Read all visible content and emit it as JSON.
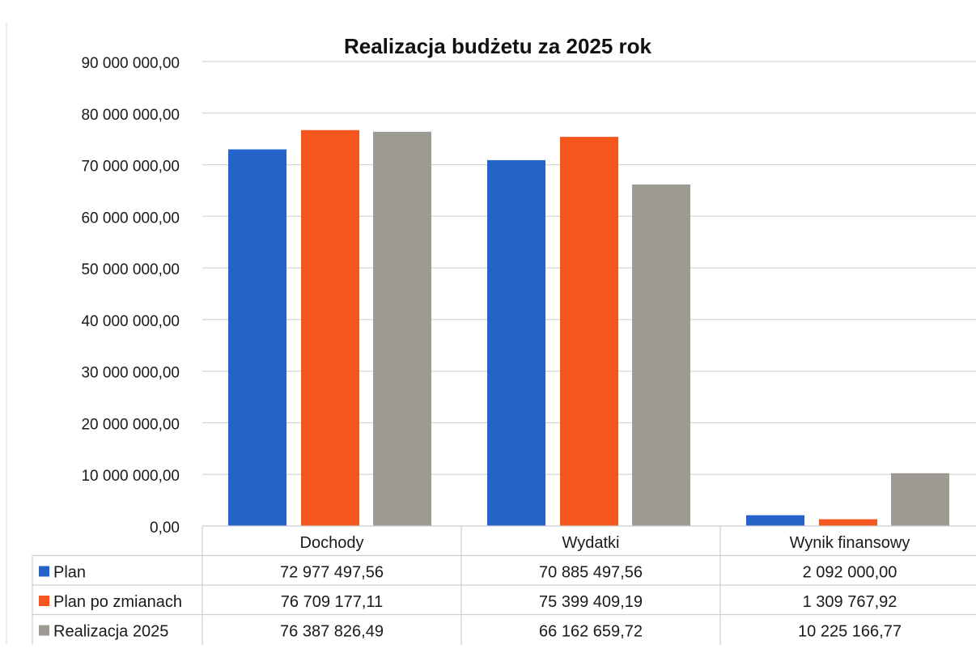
{
  "chart_data": {
    "type": "bar",
    "title": "Realizacja budżetu za 2025 rok",
    "categories": [
      "Dochody",
      "Wydatki",
      "Wynik finansowy"
    ],
    "series": [
      {
        "name": "Plan",
        "color": "#2563c9",
        "values": [
          72977497.56,
          70885497.56,
          2092000.0
        ],
        "labels": [
          "72 977 497,56",
          "70 885 497,56",
          "2 092 000,00"
        ]
      },
      {
        "name": "Plan po zmianach",
        "color": "#f4561e",
        "values": [
          76709177.11,
          75399409.19,
          1309767.92
        ],
        "labels": [
          "76 709 177,11",
          "75 399 409,19",
          "1 309 767,92"
        ]
      },
      {
        "name": "Realizacja 2025",
        "color": "#9c9a92",
        "values": [
          76387826.49,
          66162659.72,
          10225166.77
        ],
        "labels": [
          "76 387 826,49",
          "66 162 659,72",
          "10 225 166,77"
        ]
      }
    ],
    "ylim": [
      0,
      90000000
    ],
    "yticks": [
      0,
      10000000,
      20000000,
      30000000,
      40000000,
      50000000,
      60000000,
      70000000,
      80000000,
      90000000
    ],
    "ytick_labels": [
      "0,00",
      "10 000 000,00",
      "20 000 000,00",
      "30 000 000,00",
      "40 000 000,00",
      "50 000 000,00",
      "60 000 000,00",
      "70 000 000,00",
      "80 000 000,00",
      "90 000 000,00"
    ],
    "grid": true,
    "legend": "data-table"
  }
}
